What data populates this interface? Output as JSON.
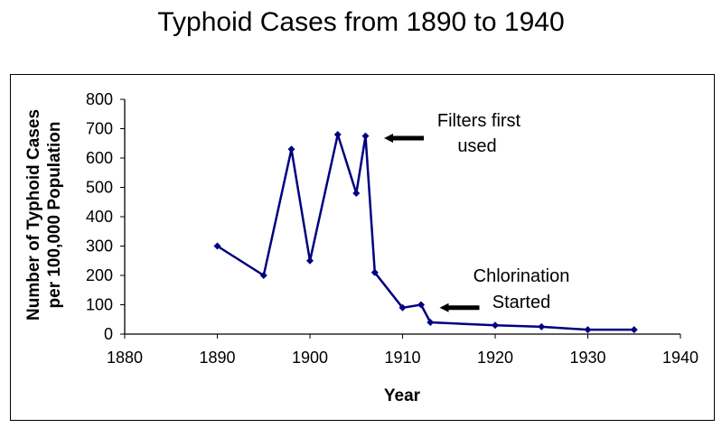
{
  "chart_data": {
    "type": "line",
    "title": "Typhoid Cases from 1890 to 1940",
    "xlabel": "Year",
    "ylabel_line1": "Number of Typhoid Cases",
    "ylabel_line2": "per 100,000 Population",
    "xlim": [
      1880,
      1940
    ],
    "ylim": [
      0,
      800
    ],
    "xticks": [
      1880,
      1890,
      1900,
      1910,
      1920,
      1930,
      1940
    ],
    "yticks": [
      0,
      100,
      200,
      300,
      400,
      500,
      600,
      700,
      800
    ],
    "grid": false,
    "legend": "none",
    "series_color": "#000080",
    "x": [
      1890,
      1895,
      1898,
      1900,
      1903,
      1905,
      1906,
      1907,
      1910,
      1912,
      1913,
      1920,
      1925,
      1930,
      1935
    ],
    "y": [
      300,
      200,
      630,
      250,
      680,
      480,
      675,
      210,
      90,
      100,
      40,
      30,
      25,
      15,
      15
    ],
    "annotations": [
      {
        "line1": "Filters first",
        "line2": "used",
        "arrow_target_x": 1908,
        "arrow_target_y": 680
      },
      {
        "line1": "Chlorination",
        "line2": "Started",
        "arrow_target_x": 1914,
        "arrow_target_y": 90
      }
    ]
  }
}
